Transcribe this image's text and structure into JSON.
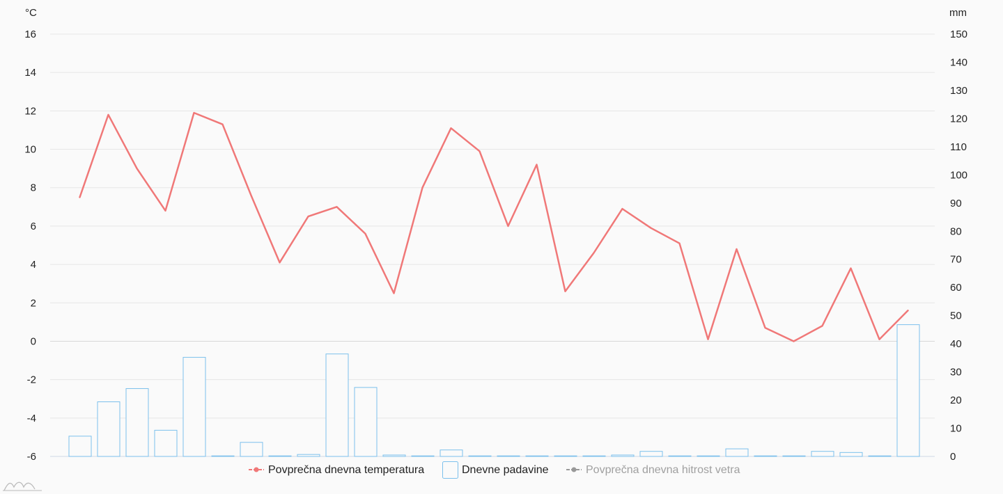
{
  "chart_data": {
    "type": "bar",
    "temp_unit": "°C",
    "precip_unit": "mm",
    "y_left": {
      "min": -6,
      "max": 16,
      "ticks": [
        16,
        14,
        12,
        10,
        8,
        6,
        4,
        2,
        0,
        -2,
        -4,
        -6
      ]
    },
    "y_right": {
      "min": 0,
      "max": 150,
      "ticks": [
        150,
        140,
        130,
        120,
        110,
        100,
        90,
        80,
        70,
        60,
        50,
        40,
        30,
        20,
        10,
        0
      ]
    },
    "grid": true,
    "legend_position": "bottom",
    "series": [
      {
        "name": "Povprečna dnevna temperatura",
        "type": "line",
        "axis": "left",
        "color": "#f07878",
        "values": [
          7.5,
          11.8,
          9.0,
          6.8,
          11.9,
          11.3,
          7.6,
          4.1,
          6.5,
          7.0,
          5.6,
          2.5,
          8.0,
          11.1,
          9.9,
          6.0,
          9.2,
          2.6,
          4.6,
          6.9,
          5.9,
          5.1,
          0.1,
          4.8,
          0.7,
          0.0,
          0.8,
          3.8,
          0.1,
          1.6
        ]
      },
      {
        "name": "Dnevne padavine",
        "type": "bar",
        "axis": "right",
        "color": "#7cc0ec",
        "values": [
          7.2,
          19.4,
          24.1,
          9.3,
          35.2,
          0.0,
          5.0,
          0.2,
          0.7,
          36.4,
          24.5,
          0.5,
          0.2,
          2.3,
          0.1,
          0.2,
          0.0,
          0.0,
          0.0,
          0.5,
          1.8,
          0.0,
          0.0,
          2.7,
          0.2,
          0.0,
          1.8,
          1.4,
          0.0,
          46.8
        ]
      },
      {
        "name": "Povprečna dnevna hitrost vetra",
        "type": "line",
        "axis": "none",
        "color": "#999999",
        "hidden": true,
        "values": []
      }
    ]
  }
}
